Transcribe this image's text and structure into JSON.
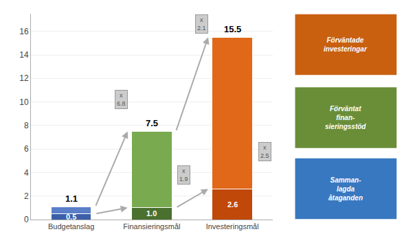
{
  "chart_data": {
    "type": "bar",
    "stacked": true,
    "categories": [
      "Budgetanslag",
      "Finansieringsmål",
      "Investeringsmål"
    ],
    "series": [
      {
        "values": [
          0.5,
          1.0,
          2.6
        ],
        "colors": [
          "#3a5fa8",
          "#4a7030",
          "#c04808"
        ],
        "value_labels": [
          "0.5",
          "1.0",
          "2.6"
        ],
        "data_labels": true
      },
      {
        "values": [
          0.6,
          6.5,
          12.9
        ],
        "colors": [
          "#5a7fc8",
          "#7aaa50",
          "#e06818"
        ]
      }
    ],
    "totals": [
      1.1,
      7.5,
      15.5
    ],
    "annotations": [
      {
        "text": "x\n6.8"
      },
      {
        "text": "x\n1.9"
      },
      {
        "text": "x\n2.1"
      },
      {
        "text": "x\n2.5"
      },
      {
        "text": "Förväntade\ninvesteringar",
        "color": "#c86010"
      },
      {
        "text": "Förväntat\nfinan-\nsieringsstöd",
        "color": "#6a8e38"
      },
      {
        "text": "Samman-\nlagda\nåtaganden",
        "color": "#3878c0"
      }
    ],
    "ylim": [
      0,
      17.5
    ],
    "yticks": [
      0,
      2,
      4,
      6,
      8,
      10,
      12,
      14,
      16
    ],
    "grid": true
  }
}
